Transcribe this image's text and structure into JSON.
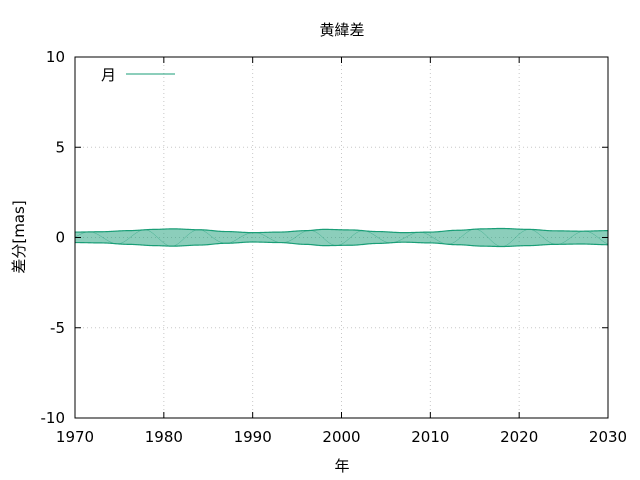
{
  "chart_data": {
    "type": "line",
    "title": "黄緯差",
    "xlabel": "年",
    "ylabel": "差分[mas]",
    "xlim": [
      1970,
      2030
    ],
    "ylim": [
      -10,
      10
    ],
    "x_ticks": [
      1970,
      1980,
      1990,
      2000,
      2010,
      2020,
      2030
    ],
    "y_ticks": [
      -10,
      -5,
      0,
      5,
      10
    ],
    "x_tick_labels": [
      "1970",
      "1980",
      "1990",
      "2000",
      "2010",
      "2020",
      "2030"
    ],
    "y_tick_labels": [
      "-10",
      "-5",
      "0",
      "5",
      "10"
    ],
    "grid": true,
    "legend_position": "top-left",
    "series": [
      {
        "name": "月",
        "color": "#1a9e77",
        "envelope": {
          "x": [
            1970,
            1973,
            1976,
            1979,
            1981,
            1984,
            1987,
            1990,
            1993,
            1996,
            1998,
            2001,
            2004,
            2007,
            2010,
            2013,
            2016,
            2018,
            2021,
            2024,
            2027,
            2030
          ],
          "upper": [
            0.3,
            0.32,
            0.38,
            0.45,
            0.48,
            0.43,
            0.33,
            0.27,
            0.3,
            0.38,
            0.45,
            0.42,
            0.33,
            0.27,
            0.3,
            0.4,
            0.48,
            0.5,
            0.45,
            0.37,
            0.35,
            0.38
          ],
          "lower": [
            -0.28,
            -0.3,
            -0.38,
            -0.45,
            -0.48,
            -0.42,
            -0.32,
            -0.25,
            -0.28,
            -0.38,
            -0.45,
            -0.43,
            -0.33,
            -0.26,
            -0.3,
            -0.4,
            -0.48,
            -0.5,
            -0.45,
            -0.38,
            -0.36,
            -0.4
          ]
        }
      }
    ]
  }
}
